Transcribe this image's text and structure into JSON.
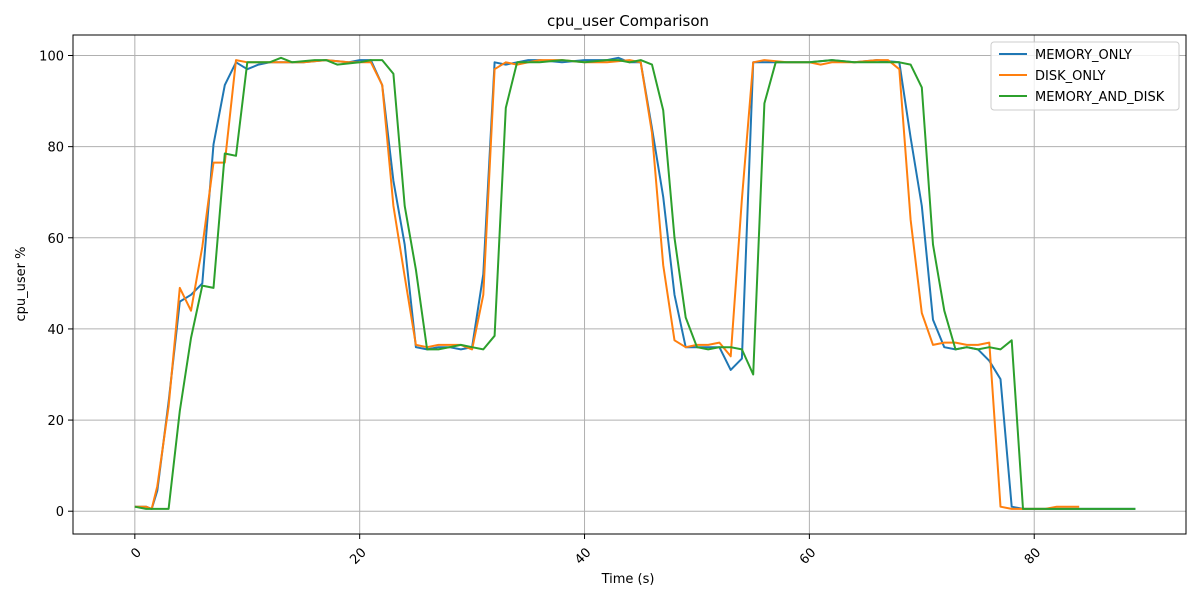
{
  "chart_data": {
    "type": "line",
    "title": "cpu_user Comparison",
    "xlabel": "Time (s)",
    "ylabel": "cpu_user %",
    "xlim": [
      -5.5,
      93.5
    ],
    "ylim": [
      -5,
      104.5
    ],
    "xticks": [
      0,
      20,
      40,
      60,
      80
    ],
    "xtick_labels": [
      "0",
      "20",
      "40",
      "60",
      "80"
    ],
    "xtick_rotation": 45,
    "yticks": [
      0,
      20,
      40,
      60,
      80,
      100
    ],
    "ytick_labels": [
      "0",
      "20",
      "40",
      "60",
      "80",
      "100"
    ],
    "grid": true,
    "legend_position": "top-right",
    "series": [
      {
        "name": "MEMORY_ONLY",
        "color": "#1f77b4",
        "points": [
          [
            0,
            1
          ],
          [
            1,
            1
          ],
          [
            1.5,
            0.5
          ],
          [
            2,
            4.5
          ],
          [
            3,
            24
          ],
          [
            4,
            46
          ],
          [
            5,
            47.5
          ],
          [
            6,
            50
          ],
          [
            7,
            80.5
          ],
          [
            8,
            93.5
          ],
          [
            9,
            98.5
          ],
          [
            10,
            97
          ],
          [
            11,
            98
          ],
          [
            12,
            98.5
          ],
          [
            13,
            98.5
          ],
          [
            15,
            98.5
          ],
          [
            17,
            99
          ],
          [
            19,
            98.5
          ],
          [
            20,
            99
          ],
          [
            21,
            99
          ],
          [
            22,
            93.5
          ],
          [
            23,
            72.5
          ],
          [
            24,
            58.5
          ],
          [
            25,
            36
          ],
          [
            26,
            35.5
          ],
          [
            27,
            36
          ],
          [
            28,
            36
          ],
          [
            29,
            35.5
          ],
          [
            30,
            36
          ],
          [
            31,
            52
          ],
          [
            32,
            98.5
          ],
          [
            33,
            98
          ],
          [
            34,
            98.5
          ],
          [
            35,
            99
          ],
          [
            36,
            99
          ],
          [
            38,
            98.5
          ],
          [
            40,
            99
          ],
          [
            42,
            99
          ],
          [
            43,
            99.5
          ],
          [
            44,
            98.5
          ],
          [
            45,
            98.5
          ],
          [
            46,
            84
          ],
          [
            47,
            69
          ],
          [
            48,
            47.5
          ],
          [
            49,
            36
          ],
          [
            50,
            36
          ],
          [
            51,
            36
          ],
          [
            52,
            36
          ],
          [
            53,
            31
          ],
          [
            54,
            33.5
          ],
          [
            55,
            98.5
          ],
          [
            56,
            98.5
          ],
          [
            58,
            98.5
          ],
          [
            60,
            98.5
          ],
          [
            62,
            99
          ],
          [
            64,
            98.5
          ],
          [
            66,
            99
          ],
          [
            68,
            98.5
          ],
          [
            69,
            82
          ],
          [
            70,
            67
          ],
          [
            71,
            42
          ],
          [
            72,
            36
          ],
          [
            73,
            35.5
          ],
          [
            74,
            36
          ],
          [
            75,
            35.5
          ],
          [
            76,
            33
          ],
          [
            77,
            29
          ],
          [
            78,
            1
          ],
          [
            79,
            0.5
          ],
          [
            80,
            0.5
          ],
          [
            82,
            0.5
          ],
          [
            84,
            0.5
          ],
          [
            86,
            0.5
          ],
          [
            88,
            0.5
          ],
          [
            89,
            0.5
          ]
        ]
      },
      {
        "name": "DISK_ONLY",
        "color": "#ff7f0e",
        "points": [
          [
            0,
            1
          ],
          [
            1,
            1
          ],
          [
            1.5,
            0.5
          ],
          [
            2,
            5.5
          ],
          [
            3,
            23
          ],
          [
            4,
            49
          ],
          [
            5,
            44
          ],
          [
            6,
            58
          ],
          [
            7,
            76.5
          ],
          [
            8,
            76.5
          ],
          [
            9,
            99
          ],
          [
            10,
            98.5
          ],
          [
            11,
            98.5
          ],
          [
            13,
            98.5
          ],
          [
            15,
            98.5
          ],
          [
            17,
            99
          ],
          [
            19,
            98.5
          ],
          [
            20,
            98.5
          ],
          [
            21,
            98.5
          ],
          [
            22,
            93.5
          ],
          [
            23,
            67
          ],
          [
            24,
            51.5
          ],
          [
            25,
            36.5
          ],
          [
            26,
            36
          ],
          [
            27,
            36.5
          ],
          [
            28,
            36.5
          ],
          [
            29,
            36.5
          ],
          [
            30,
            35.5
          ],
          [
            31,
            47.5
          ],
          [
            32,
            97
          ],
          [
            33,
            98.5
          ],
          [
            34,
            98
          ],
          [
            35,
            98.5
          ],
          [
            36,
            99
          ],
          [
            38,
            99
          ],
          [
            40,
            98.5
          ],
          [
            42,
            98.5
          ],
          [
            44,
            99
          ],
          [
            45,
            98.5
          ],
          [
            46,
            83
          ],
          [
            47,
            54
          ],
          [
            48,
            37.5
          ],
          [
            49,
            36
          ],
          [
            50,
            36.5
          ],
          [
            51,
            36.5
          ],
          [
            52,
            37
          ],
          [
            53,
            34
          ],
          [
            54,
            68.5
          ],
          [
            55,
            98.5
          ],
          [
            56,
            99
          ],
          [
            58,
            98.5
          ],
          [
            60,
            98.5
          ],
          [
            61,
            98
          ],
          [
            62,
            98.5
          ],
          [
            64,
            98.5
          ],
          [
            66,
            99
          ],
          [
            67,
            99
          ],
          [
            68,
            97
          ],
          [
            69,
            64
          ],
          [
            70,
            43.5
          ],
          [
            71,
            36.5
          ],
          [
            72,
            37
          ],
          [
            73,
            37
          ],
          [
            74,
            36.5
          ],
          [
            75,
            36.5
          ],
          [
            76,
            37
          ],
          [
            77,
            1
          ],
          [
            78,
            0.5
          ],
          [
            79,
            0.5
          ],
          [
            80,
            0.5
          ],
          [
            81,
            0.5
          ],
          [
            82,
            1
          ],
          [
            84,
            1
          ]
        ]
      },
      {
        "name": "MEMORY_AND_DISK",
        "color": "#2ca02c",
        "points": [
          [
            0,
            1
          ],
          [
            1,
            0.5
          ],
          [
            2,
            0.5
          ],
          [
            3,
            0.5
          ],
          [
            4,
            22
          ],
          [
            5,
            38
          ],
          [
            6,
            49.5
          ],
          [
            7,
            49
          ],
          [
            8,
            78.5
          ],
          [
            9,
            78
          ],
          [
            10,
            98.5
          ],
          [
            11,
            98.5
          ],
          [
            12,
            98.5
          ],
          [
            13,
            99.5
          ],
          [
            14,
            98.5
          ],
          [
            16,
            99
          ],
          [
            17,
            99
          ],
          [
            18,
            98
          ],
          [
            20,
            98.5
          ],
          [
            21,
            99
          ],
          [
            22,
            99
          ],
          [
            23,
            96
          ],
          [
            24,
            67
          ],
          [
            25,
            53
          ],
          [
            26,
            35.5
          ],
          [
            27,
            35.5
          ],
          [
            28,
            36
          ],
          [
            29,
            36.5
          ],
          [
            30,
            36
          ],
          [
            31,
            35.5
          ],
          [
            32,
            38.5
          ],
          [
            33,
            88.5
          ],
          [
            34,
            98.5
          ],
          [
            36,
            98.5
          ],
          [
            38,
            99
          ],
          [
            40,
            98.5
          ],
          [
            42,
            99
          ],
          [
            43,
            99
          ],
          [
            44,
            98.5
          ],
          [
            45,
            99
          ],
          [
            46,
            98
          ],
          [
            47,
            88
          ],
          [
            48,
            60
          ],
          [
            49,
            42.5
          ],
          [
            50,
            36
          ],
          [
            51,
            35.5
          ],
          [
            52,
            36
          ],
          [
            53,
            36
          ],
          [
            54,
            35.5
          ],
          [
            55,
            30
          ],
          [
            56,
            89.5
          ],
          [
            57,
            98.5
          ],
          [
            58,
            98.5
          ],
          [
            60,
            98.5
          ],
          [
            62,
            99
          ],
          [
            64,
            98.5
          ],
          [
            66,
            98.5
          ],
          [
            68,
            98.5
          ],
          [
            69,
            98
          ],
          [
            70,
            93
          ],
          [
            71,
            58.5
          ],
          [
            72,
            44
          ],
          [
            73,
            35.5
          ],
          [
            74,
            36
          ],
          [
            75,
            35.5
          ],
          [
            76,
            36
          ],
          [
            77,
            35.5
          ],
          [
            78,
            37.5
          ],
          [
            79,
            0.5
          ],
          [
            80,
            0.5
          ],
          [
            82,
            0.5
          ],
          [
            84,
            0.5
          ],
          [
            86,
            0.5
          ],
          [
            88,
            0.5
          ],
          [
            89,
            0.5
          ]
        ]
      }
    ]
  }
}
